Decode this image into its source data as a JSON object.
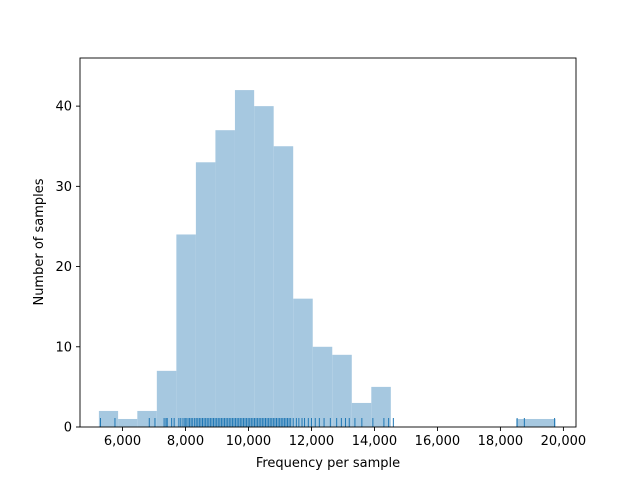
{
  "chart_data": {
    "type": "bar",
    "title": "",
    "xlabel": "Frequency per sample",
    "ylabel": "Number of samples",
    "xlim": [
      4650,
      20400
    ],
    "ylim": [
      0,
      46
    ],
    "grid": false,
    "bar_color": "#a6c8e0",
    "rug_color": "#1f77b4",
    "x_ticks": [
      6000,
      8000,
      10000,
      12000,
      14000,
      16000,
      18000,
      20000
    ],
    "x_tick_labels": [
      "6,000",
      "8,000",
      "10,000",
      "12,000",
      "14,000",
      "16,000",
      "18,000",
      "20,000"
    ],
    "y_ticks": [
      0,
      10,
      20,
      30,
      40
    ],
    "y_tick_labels": [
      "0",
      "10",
      "20",
      "30",
      "40"
    ],
    "bins": [
      {
        "x0": 5250,
        "x1": 5860,
        "count": 2
      },
      {
        "x0": 5860,
        "x1": 6470,
        "count": 1
      },
      {
        "x0": 6470,
        "x1": 7090,
        "count": 2
      },
      {
        "x0": 7090,
        "x1": 7710,
        "count": 7
      },
      {
        "x0": 7710,
        "x1": 8330,
        "count": 24
      },
      {
        "x0": 8330,
        "x1": 8950,
        "count": 33
      },
      {
        "x0": 8950,
        "x1": 9570,
        "count": 37
      },
      {
        "x0": 9570,
        "x1": 10180,
        "count": 42
      },
      {
        "x0": 10180,
        "x1": 10800,
        "count": 40
      },
      {
        "x0": 10800,
        "x1": 11420,
        "count": 35
      },
      {
        "x0": 11420,
        "x1": 12040,
        "count": 16
      },
      {
        "x0": 12040,
        "x1": 12660,
        "count": 10
      },
      {
        "x0": 12660,
        "x1": 13280,
        "count": 9
      },
      {
        "x0": 13280,
        "x1": 13900,
        "count": 3
      },
      {
        "x0": 13900,
        "x1": 14520,
        "count": 5
      },
      {
        "x0": 14520,
        "x1": 18500,
        "count": 0
      },
      {
        "x0": 18500,
        "x1": 19750,
        "count": 1
      }
    ],
    "rug_values": [
      5300,
      5760,
      6850,
      7030,
      7320,
      7380,
      7420,
      7560,
      7640,
      7790,
      7850,
      7920,
      7980,
      8020,
      8080,
      8130,
      8180,
      8230,
      8290,
      8340,
      8390,
      8440,
      8490,
      8540,
      8590,
      8640,
      8690,
      8740,
      8790,
      8840,
      8890,
      8940,
      8990,
      9040,
      9090,
      9140,
      9190,
      9240,
      9290,
      9340,
      9390,
      9440,
      9490,
      9540,
      9590,
      9640,
      9690,
      9740,
      9790,
      9840,
      9890,
      9940,
      9990,
      10040,
      10090,
      10140,
      10190,
      10240,
      10290,
      10340,
      10390,
      10440,
      10490,
      10540,
      10590,
      10640,
      10690,
      10740,
      10790,
      10840,
      10890,
      10940,
      10990,
      11040,
      11090,
      11140,
      11190,
      11240,
      11290,
      11340,
      11420,
      11520,
      11600,
      11700,
      11780,
      11900,
      12000,
      12120,
      12250,
      12400,
      12600,
      12800,
      12950,
      13080,
      13200,
      13380,
      13600,
      13950,
      14300,
      14450,
      14600,
      18530,
      18760,
      19720
    ]
  }
}
